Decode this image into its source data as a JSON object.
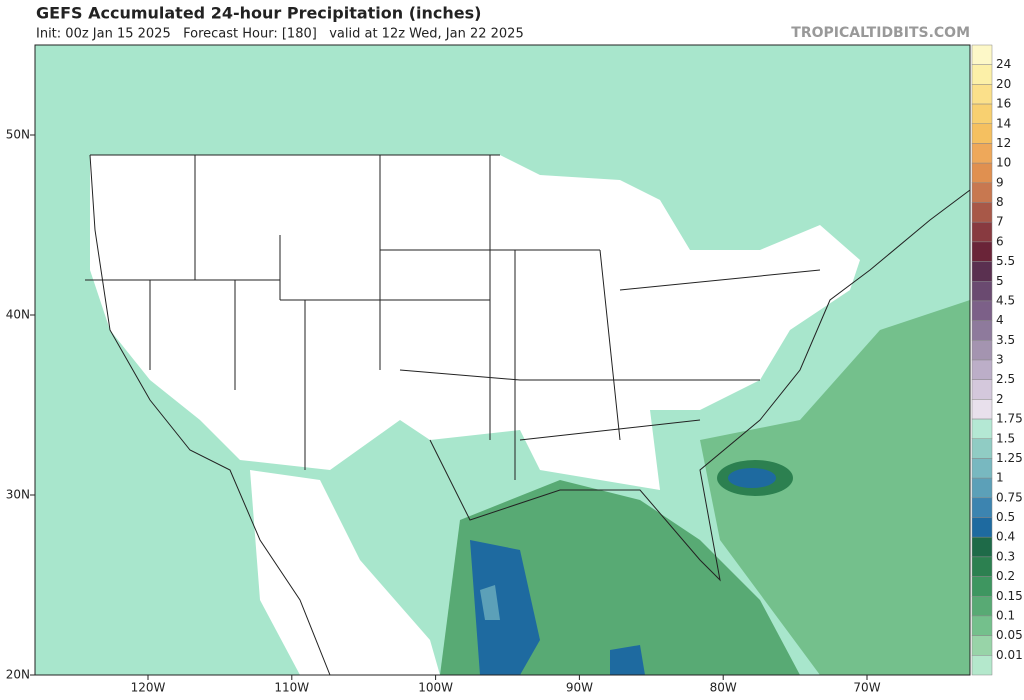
{
  "header": {
    "title": "GEFS Accumulated 24-hour Precipitation (inches)",
    "subtitle": "Init: 00z Jan 15 2025   Forecast Hour: [180]   valid at 12z Wed, Jan 22 2025",
    "source": "TROPICALTIDBITS.COM"
  },
  "map": {
    "lat_labels": [
      "50N",
      "40N",
      "30N",
      "20N"
    ],
    "lon_labels": [
      "120W",
      "110W",
      "100W",
      "90W",
      "80W",
      "70W"
    ]
  },
  "colorbar": [
    {
      "label": "24",
      "color": "#fcf0a8"
    },
    {
      "label": "20",
      "color": "#fbe08a"
    },
    {
      "label": "16",
      "color": "#f8d070"
    },
    {
      "label": "14",
      "color": "#f5c060"
    },
    {
      "label": "12",
      "color": "#eea85a"
    },
    {
      "label": "10",
      "color": "#e09050"
    },
    {
      "label": "9",
      "color": "#c87850"
    },
    {
      "label": "8",
      "color": "#a85848"
    },
    {
      "label": "7",
      "color": "#883a40"
    },
    {
      "label": "6",
      "color": "#6a2438"
    },
    {
      "label": "5.5",
      "color": "#5a3050"
    },
    {
      "label": "5",
      "color": "#6a4a70"
    },
    {
      "label": "4.5",
      "color": "#7c6088"
    },
    {
      "label": "4",
      "color": "#8e7a9c"
    },
    {
      "label": "3.5",
      "color": "#a494b0"
    },
    {
      "label": "3",
      "color": "#bcaec8"
    },
    {
      "label": "2.5",
      "color": "#d4c8dc"
    },
    {
      "label": "2",
      "color": "#e8e0ec"
    },
    {
      "label": "1.75",
      "color": "#b4e8d4"
    },
    {
      "label": "1.5",
      "color": "#90ccc4"
    },
    {
      "label": "1.25",
      "color": "#78b8c0"
    },
    {
      "label": "1",
      "color": "#5ca0b8"
    },
    {
      "label": "0.75",
      "color": "#3c84b0"
    },
    {
      "label": "0.5",
      "color": "#1e6aa0"
    },
    {
      "label": "0.4",
      "color": "#1e6a48"
    },
    {
      "label": "0.3",
      "color": "#2c8050"
    },
    {
      "label": "0.2",
      "color": "#3e9660"
    },
    {
      "label": "0.15",
      "color": "#58aa74"
    },
    {
      "label": "0.1",
      "color": "#74c08c"
    },
    {
      "label": "0.05",
      "color": "#98d4a8"
    },
    {
      "label": "0.01",
      "color": "#b4e8cc"
    }
  ]
}
